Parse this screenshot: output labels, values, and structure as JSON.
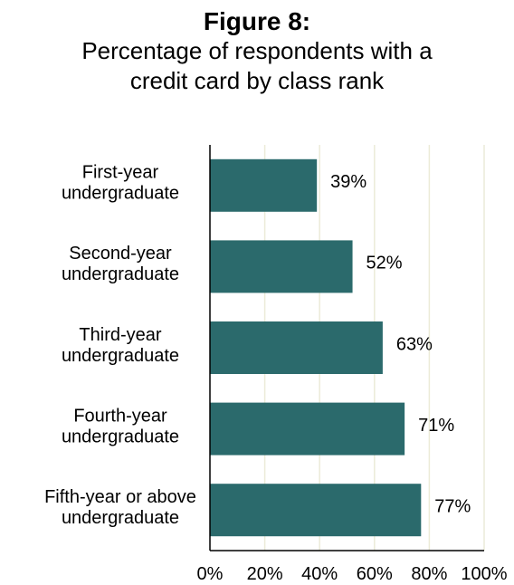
{
  "figure": {
    "label": "Figure 8:",
    "title_line1": "Percentage of respondents with a",
    "title_line2": "credit card by class rank"
  },
  "colors": {
    "bar": "#2b6a6c",
    "grid": "#ecebd8",
    "axis": "#000000",
    "text": "#000000"
  },
  "chart_data": {
    "type": "bar",
    "orientation": "horizontal",
    "title": "Percentage of respondents with a credit card by class rank",
    "xlabel": "",
    "ylabel": "",
    "categories": [
      [
        "First-year",
        "undergraduate"
      ],
      [
        "Second-year",
        "undergraduate"
      ],
      [
        "Third-year",
        "undergraduate"
      ],
      [
        "Fourth-year",
        "undergraduate"
      ],
      [
        "Fifth-year or above",
        "undergraduate"
      ]
    ],
    "values": [
      39,
      52,
      63,
      71,
      77
    ],
    "data_labels": [
      "39%",
      "52%",
      "63%",
      "71%",
      "77%"
    ],
    "xlim": [
      0,
      100
    ],
    "xticks": [
      0,
      20,
      40,
      60,
      80,
      100
    ],
    "xtick_labels": [
      "0%",
      "20%",
      "40%",
      "60%",
      "80%",
      "100%"
    ],
    "grid": "vertical",
    "legend": "none"
  }
}
